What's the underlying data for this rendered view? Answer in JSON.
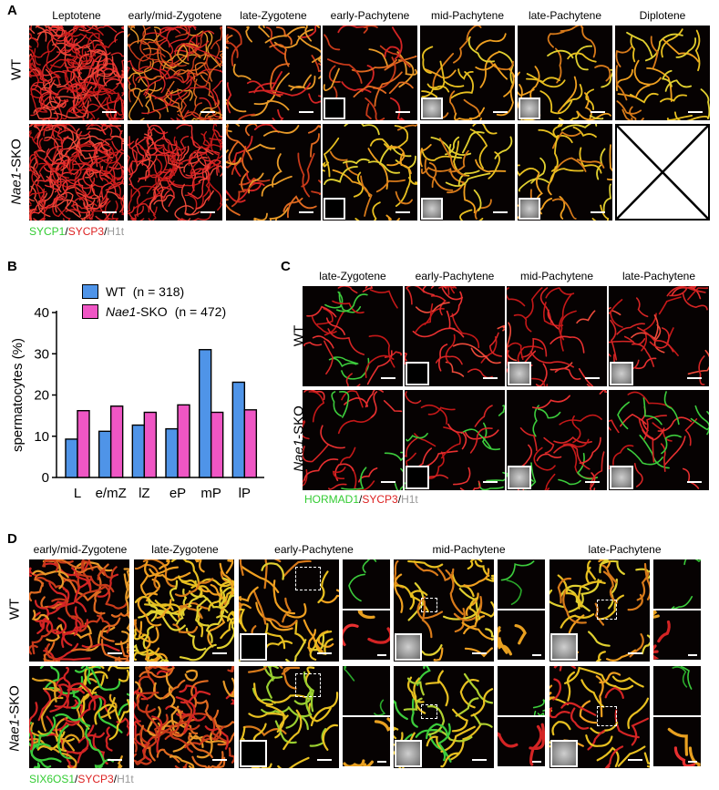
{
  "panelA": {
    "label": "A",
    "stages": [
      "Leptotene",
      "early/mid-Zygotene",
      "late-Zygotene",
      "early-Pachytene",
      "mid-Pachytene",
      "late-Pachytene",
      "Diplotene"
    ],
    "rows": [
      {
        "label": "WT"
      },
      {
        "label_italic": "Nae1",
        "label_rest": "-SKO"
      }
    ],
    "legend": {
      "p1": "SYCP1",
      "sep1": "/",
      "p2": "SYCP3",
      "sep2": "/",
      "p3": "H1t"
    }
  },
  "panelB": {
    "label": "B",
    "legend": [
      {
        "name": "WT",
        "n_text": "(n = 318)",
        "color": "#4f94e8"
      },
      {
        "name_italic": "Nae1",
        "name_rest": "-SKO",
        "n_text": "(n = 472)",
        "color": "#ef56c4"
      }
    ]
  },
  "chart_data": {
    "type": "bar",
    "categories": [
      "L",
      "e/mZ",
      "lZ",
      "eP",
      "mP",
      "lP"
    ],
    "series": [
      {
        "name": "WT (n = 318)",
        "values": [
          9.3,
          11.2,
          12.7,
          11.8,
          31,
          23.1
        ]
      },
      {
        "name": "Nae1-SKO (n = 472)",
        "values": [
          16.2,
          17.3,
          15.8,
          17.6,
          15.8,
          16.4
        ]
      }
    ],
    "ylabel": "spermatocytes (%)",
    "xlabel": "",
    "ylim": [
      0,
      40
    ],
    "yticks": [
      0,
      10,
      20,
      30,
      40
    ],
    "colors": [
      "#4f94e8",
      "#ef56c4"
    ],
    "grid": false
  },
  "panelC": {
    "label": "C",
    "stages": [
      "late-Zygotene",
      "early-Pachytene",
      "mid-Pachytene",
      "late-Pachytene"
    ],
    "rows": [
      {
        "label": "WT"
      },
      {
        "label_italic": "Nae1",
        "label_rest": "-SKO"
      }
    ],
    "legend": {
      "p1": "HORMAD1",
      "sep1": "/",
      "p2": "SYCP3",
      "sep2": "/",
      "p3": "H1t"
    }
  },
  "panelD": {
    "label": "D",
    "stages": [
      "early/mid-Zygotene",
      "late-Zygotene",
      "early-Pachytene",
      "mid-Pachytene",
      "late-Pachytene"
    ],
    "rows": [
      {
        "label": "WT"
      },
      {
        "label_italic": "Nae1",
        "label_rest": "-SKO"
      }
    ],
    "legend": {
      "p1": "SIX6OS1",
      "sep1": "/",
      "p2": "SYCP3",
      "sep2": "/",
      "p3": "H1t"
    }
  }
}
